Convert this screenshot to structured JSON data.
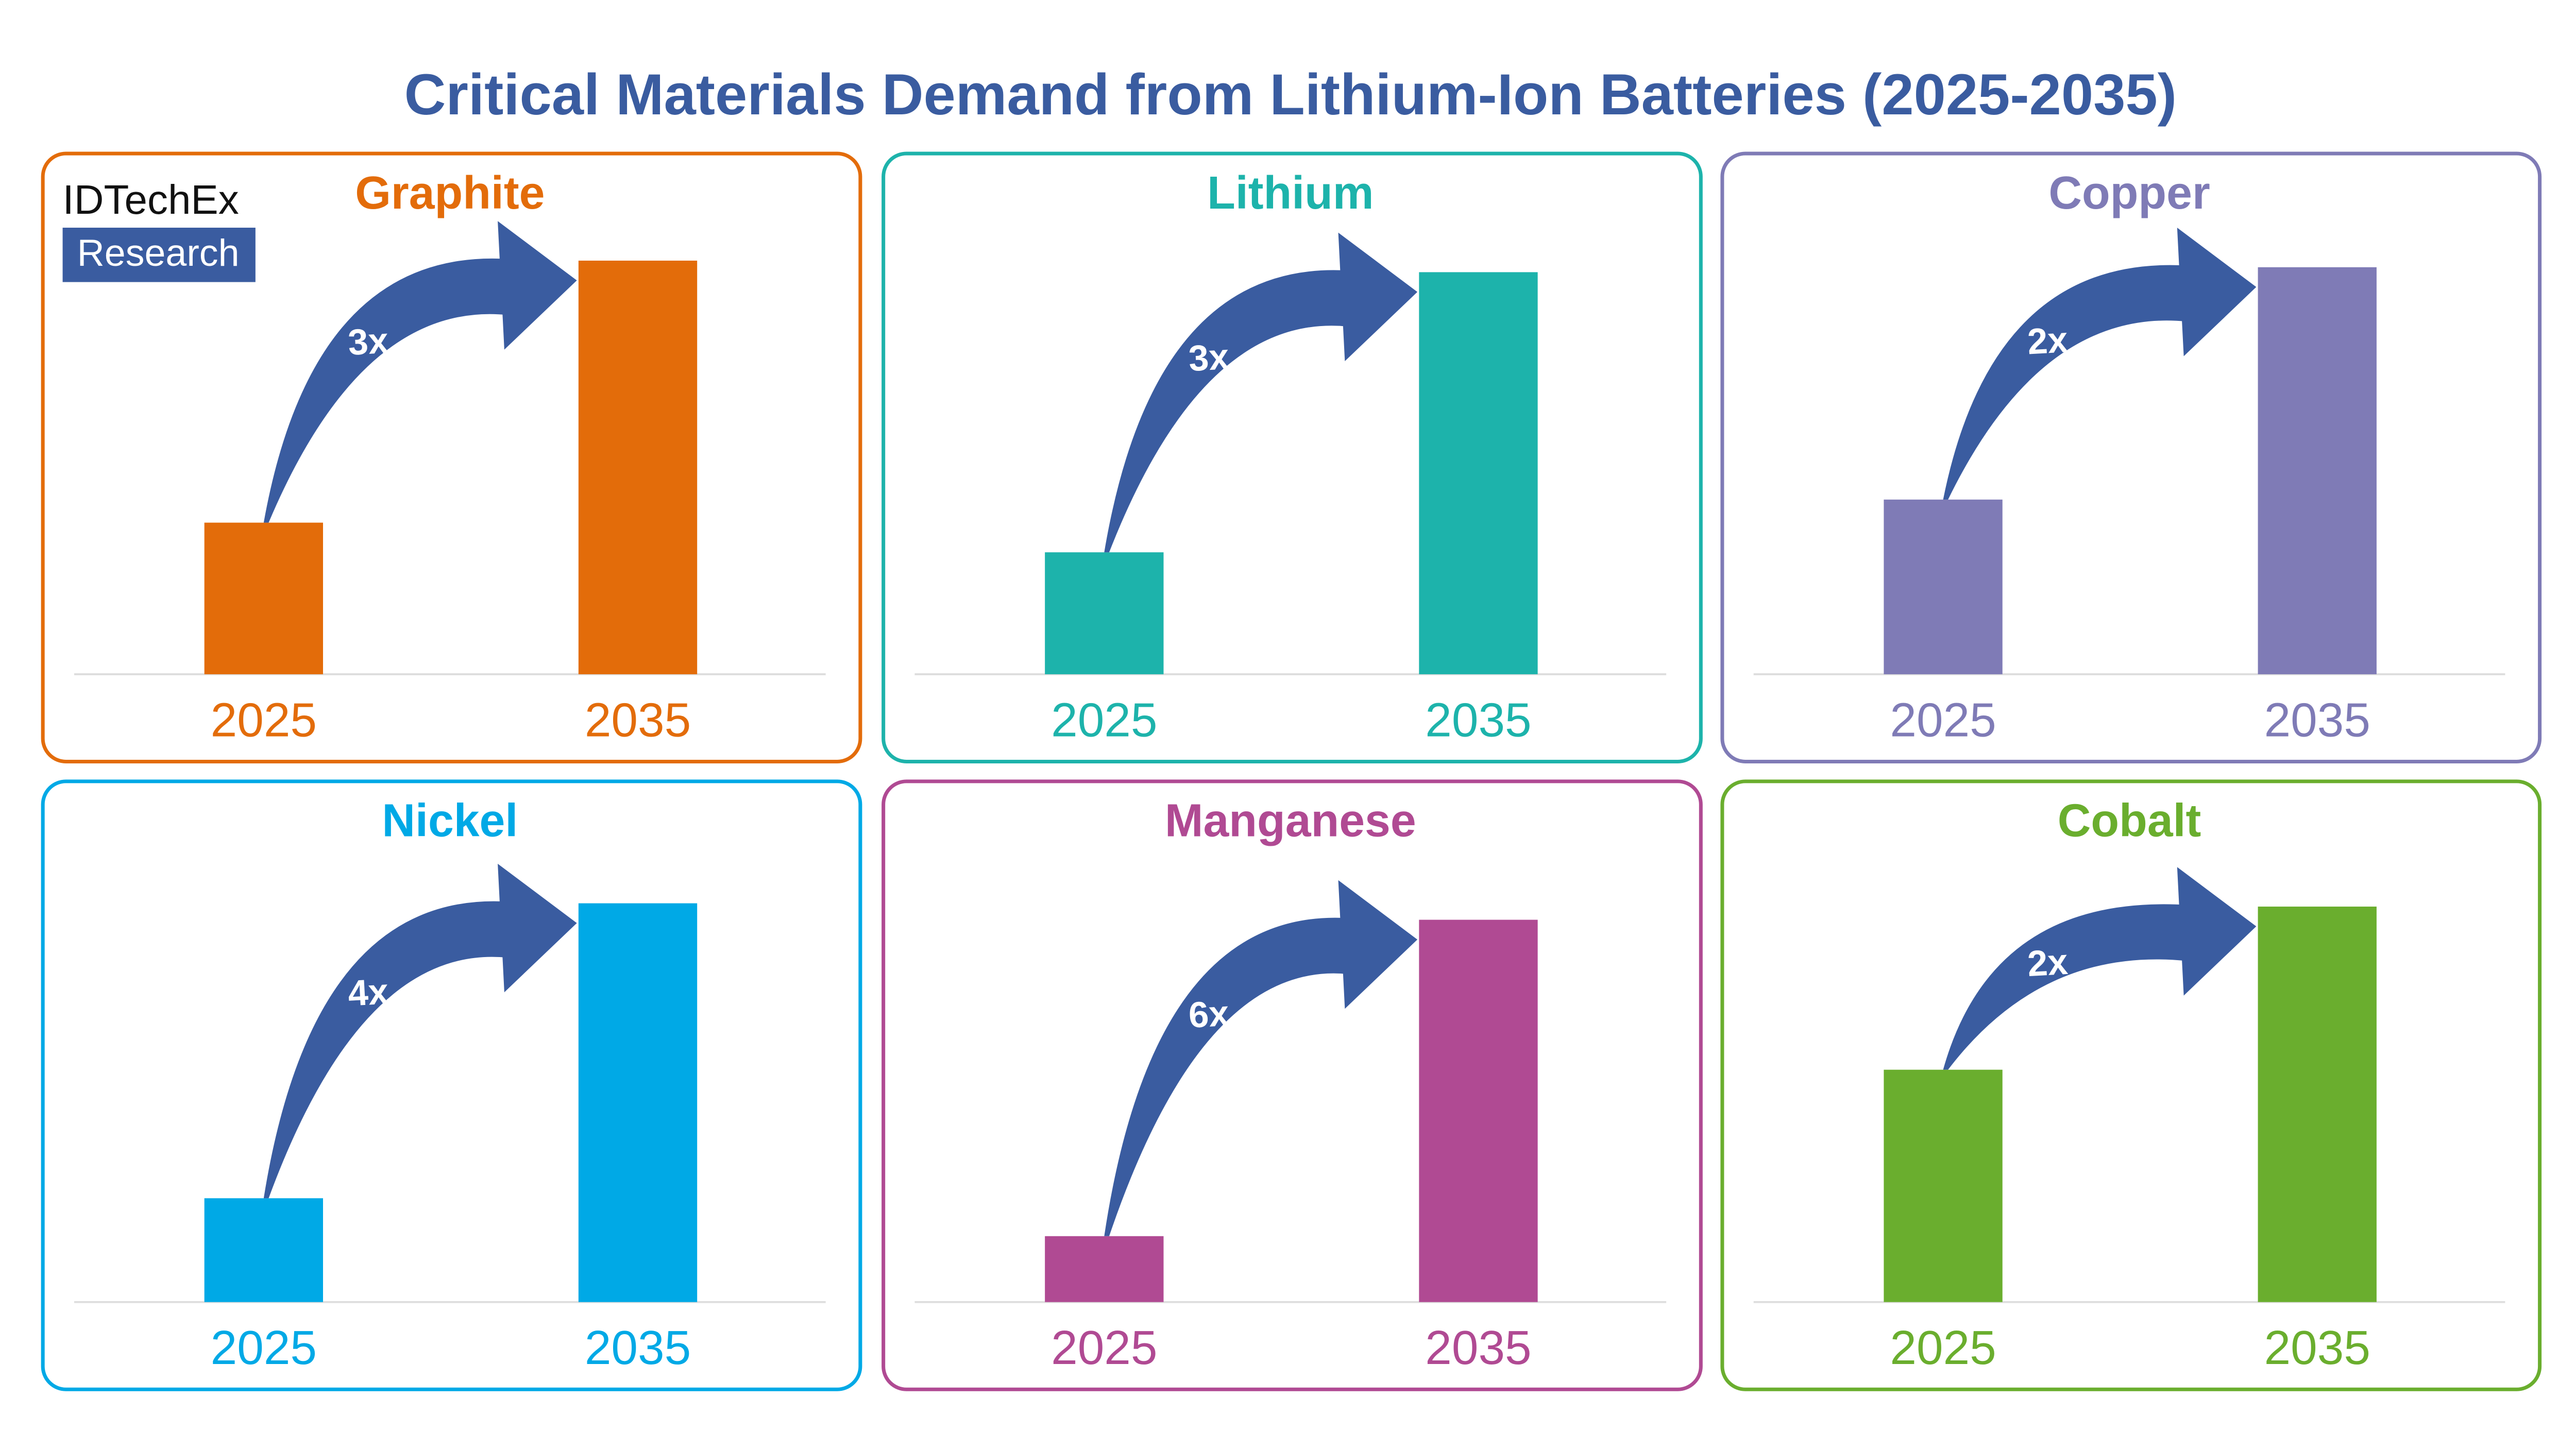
{
  "title": "Critical Materials Demand from Lithium-Ion Batteries (2025-2035)",
  "logo": {
    "name": "IDTechEx",
    "tag": "Research"
  },
  "chart_data": [
    {
      "type": "bar",
      "title": "Graphite",
      "categories": [
        "2025",
        "2035"
      ],
      "values": [
        92,
        251
      ],
      "color": "#e36c0a",
      "annotation": "3x"
    },
    {
      "type": "bar",
      "title": "Lithium",
      "categories": [
        "2025",
        "2035"
      ],
      "values": [
        74,
        244
      ],
      "color": "#1db3ab",
      "annotation": "3x"
    },
    {
      "type": "bar",
      "title": "Copper",
      "categories": [
        "2025",
        "2035"
      ],
      "values": [
        106,
        247
      ],
      "color": "#7f7bb6",
      "annotation": "2x"
    },
    {
      "type": "bar",
      "title": "Nickel",
      "categories": [
        "2025",
        "2035"
      ],
      "values": [
        63,
        242
      ],
      "color": "#00a9e6",
      "annotation": "4x"
    },
    {
      "type": "bar",
      "title": "Manganese",
      "categories": [
        "2025",
        "2035"
      ],
      "values": [
        40,
        232
      ],
      "color": "#b04a93",
      "annotation": "6x"
    },
    {
      "type": "bar",
      "title": "Cobalt",
      "categories": [
        "2025",
        "2035"
      ],
      "values": [
        141,
        240
      ],
      "color": "#6aae2e",
      "annotation": "2x"
    }
  ]
}
